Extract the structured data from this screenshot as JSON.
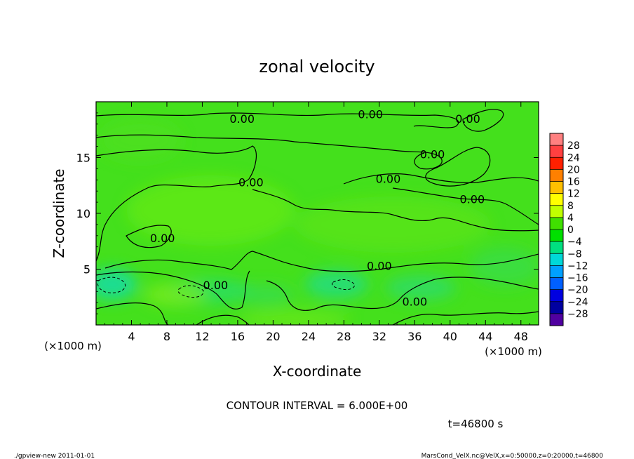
{
  "chart_data": {
    "type": "heatmap",
    "title": "zonal velocity",
    "xlabel": "X-coordinate",
    "ylabel": "Z-coordinate",
    "x_unit": "(×1000 m)",
    "y_unit": "(×1000 m)",
    "xlim": [
      0,
      50
    ],
    "ylim": [
      0,
      20
    ],
    "x_ticks": [
      4,
      8,
      12,
      16,
      20,
      24,
      28,
      32,
      36,
      40,
      44,
      48
    ],
    "y_ticks": [
      5,
      10,
      15
    ],
    "colorbar": {
      "levels": [
        28,
        24,
        20,
        16,
        12,
        8,
        4,
        0,
        -4,
        -8,
        -12,
        -16,
        -20,
        -24,
        -28
      ],
      "labels": [
        "28",
        "24",
        "20",
        "16",
        "12",
        "8",
        "4",
        "0",
        "−4",
        "−8",
        "−12",
        "−16",
        "−20",
        "−24",
        "−28"
      ],
      "colors": [
        "#ff8080",
        "#ff4040",
        "#ff2000",
        "#ff8000",
        "#ffc000",
        "#ffff00",
        "#c0ff00",
        "#40e000",
        "#00e000",
        "#00e080",
        "#00d8d8",
        "#00a0ff",
        "#0060ff",
        "#0000e0",
        "#0000a0",
        "#5000a0"
      ]
    },
    "contour_labels": [
      {
        "text": "0.00",
        "x": 16.5,
        "z": 18.5
      },
      {
        "text": "0.00",
        "x": 31.0,
        "z": 18.9
      },
      {
        "text": "0.00",
        "x": 42.0,
        "z": 18.5
      },
      {
        "text": "0.00",
        "x": 38.0,
        "z": 15.3
      },
      {
        "text": "0.00",
        "x": 17.5,
        "z": 12.8
      },
      {
        "text": "0.00",
        "x": 33.0,
        "z": 13.1
      },
      {
        "text": "0.00",
        "x": 42.5,
        "z": 11.3
      },
      {
        "text": "0.00",
        "x": 7.5,
        "z": 7.8
      },
      {
        "text": "0.00",
        "x": 32.0,
        "z": 5.3
      },
      {
        "text": "0.00",
        "x": 13.5,
        "z": 3.6
      },
      {
        "text": "0.00",
        "x": 36.0,
        "z": 2.1
      }
    ],
    "contour_interval_text": "CONTOUR INTERVAL = 6.000E+00",
    "time_text": "t=46800 s"
  },
  "footer": {
    "left": "./gpview-new   2011-01-01",
    "right": "MarsCond_VelX.nc@VelX,x=0:50000,z=0:20000,t=46800"
  }
}
